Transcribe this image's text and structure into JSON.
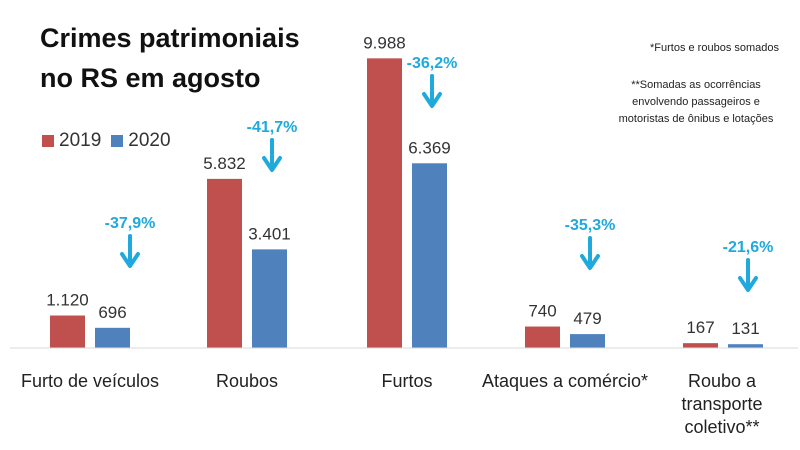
{
  "title_line1": "Crimes patrimoniais",
  "title_line2": "no RS em agosto",
  "notes": {
    "note1": "*Furtos e roubos somados",
    "note2": "**Somadas as ocorrências envolvendo passageiros e motoristas de ônibus e lotações"
  },
  "colors": {
    "y2019": "#c0504d",
    "y2020": "#4f81bd",
    "change": "#1fa9dd"
  },
  "chart_data": {
    "type": "bar",
    "categories": [
      "Furto de veículos",
      "Roubos",
      "Furtos",
      "Ataques a comércio*",
      "Roubo a transporte coletivo**"
    ],
    "series": [
      {
        "name": "2019",
        "values": [
          1120,
          5832,
          9988,
          740,
          167
        ],
        "labels": [
          "1.120",
          "5.832",
          "9.988",
          "740",
          "167"
        ]
      },
      {
        "name": "2020",
        "values": [
          696,
          3401,
          6369,
          479,
          131
        ],
        "labels": [
          "696",
          "3.401",
          "6.369",
          "479",
          "131"
        ]
      }
    ],
    "changes": [
      "-37,9%",
      "-41,7%",
      "-36,2%",
      "-35,3%",
      "-21,6%"
    ],
    "legend": [
      "2019",
      "2020"
    ],
    "ylim": [
      0,
      10000
    ]
  }
}
